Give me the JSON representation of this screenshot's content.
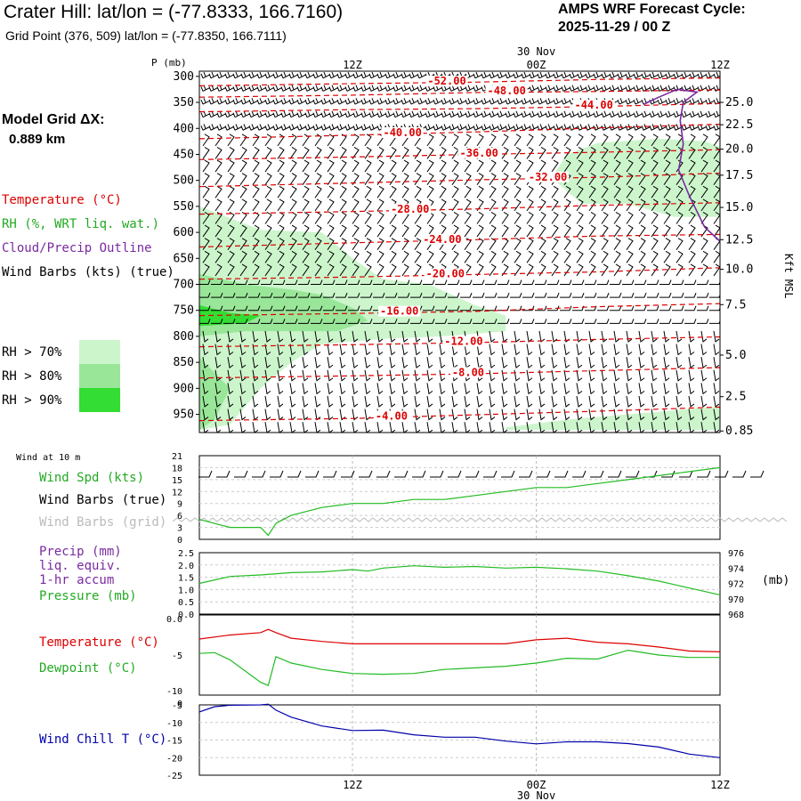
{
  "header": {
    "title": "Crater Hill:  lat/lon = (-77.8333, 166.7160)",
    "grid_point": "Grid Point (376, 509) lat/lon = (-77.8350, 166.7111)",
    "cycle_label": "AMPS WRF Forecast Cycle:",
    "cycle_value": "2025-11-29 / 00  Z"
  },
  "model": {
    "dx_label": "Model Grid ΔX:",
    "dx_value": "0.889 km"
  },
  "legend": {
    "temperature": "Temperature (°C)",
    "rh": "RH (%, WRT liq. wat.)",
    "cloud": "Cloud/Precip Outline",
    "wind": "Wind Barbs (kts) (true)",
    "rh_levels": [
      {
        "label": "RH > 70%",
        "color": "#ccf5cc"
      },
      {
        "label": "RH > 80%",
        "color": "#99e699"
      },
      {
        "label": "RH > 90%",
        "color": "#33dd33"
      }
    ]
  },
  "colors": {
    "temperature": "#dd0000",
    "rh": "#22bb22",
    "cloud": "#7a2aa0",
    "wind_chill": "#0000aa",
    "pressure": "#22bb22",
    "grid_barbs": "#bbbbbb"
  },
  "time_axis": {
    "date_label": "30 Nov",
    "ticks": [
      {
        "label": "12Z",
        "hour": 12
      },
      {
        "label": "00Z",
        "hour": 24
      },
      {
        "label": "12Z",
        "hour": 36
      }
    ],
    "range_hours": [
      2,
      36
    ]
  },
  "chart_data": [
    {
      "type": "heatmap",
      "panel": "time-height cross section",
      "ylabel": "P (mb)",
      "y2label": "Kft MSL",
      "pressure_ticks": [
        300,
        350,
        400,
        450,
        500,
        550,
        600,
        650,
        700,
        750,
        800,
        850,
        900,
        950
      ],
      "height_ticks": [
        {
          "label": "25.0",
          "p": 350
        },
        {
          "label": "22.5",
          "p": 393
        },
        {
          "label": "20.0",
          "p": 440
        },
        {
          "label": "17.5",
          "p": 490
        },
        {
          "label": "15.0",
          "p": 552
        },
        {
          "label": "12.5",
          "p": 614
        },
        {
          "label": "10.0",
          "p": 671
        },
        {
          "label": "7.5",
          "p": 739
        },
        {
          "label": "5.0",
          "p": 836
        },
        {
          "label": "2.5",
          "p": 916
        },
        {
          "label": "0.85",
          "p": 982
        }
      ],
      "ylim": [
        290,
        985
      ],
      "isotherms": [
        {
          "label": "-52.00",
          "value": -52,
          "label_hour": 16.9,
          "points": [
            [
              2,
              318
            ],
            [
              12,
              314
            ],
            [
              20,
              311
            ],
            [
              28,
              306
            ],
            [
              36,
              303
            ]
          ]
        },
        {
          "label": "-48.00",
          "value": -48,
          "label_hour": 20.8,
          "points": [
            [
              2,
              340
            ],
            [
              12,
              336
            ],
            [
              20,
              331
            ],
            [
              28,
              329
            ],
            [
              36,
              326
            ]
          ]
        },
        {
          "label": "-44.00",
          "value": -44,
          "label_hour": 26.5,
          "points": [
            [
              2,
              368
            ],
            [
              12,
              364
            ],
            [
              20,
              362
            ],
            [
              28,
              358
            ],
            [
              36,
              352
            ]
          ]
        },
        {
          "label": "-40.00",
          "value": -40,
          "label_hour": 14.0,
          "points": [
            [
              2,
              420
            ],
            [
              12,
              413
            ],
            [
              20,
              407
            ],
            [
              28,
              399
            ],
            [
              36,
              392
            ]
          ]
        },
        {
          "label": "-36.00",
          "value": -36,
          "label_hour": 19.0,
          "points": [
            [
              2,
              460
            ],
            [
              12,
              455
            ],
            [
              20,
              450
            ],
            [
              28,
              446
            ],
            [
              36,
              441
            ]
          ]
        },
        {
          "label": "-32.00",
          "value": -32,
          "label_hour": 23.5,
          "points": [
            [
              2,
              512
            ],
            [
              12,
              505
            ],
            [
              20,
              499
            ],
            [
              28,
              494
            ],
            [
              36,
              486
            ]
          ]
        },
        {
          "label": "-28.00",
          "value": -28,
          "label_hour": 14.5,
          "points": [
            [
              2,
              565
            ],
            [
              12,
              560
            ],
            [
              20,
              555
            ],
            [
              28,
              548
            ],
            [
              36,
              543
            ]
          ]
        },
        {
          "label": "-24.00",
          "value": -24,
          "label_hour": 16.6,
          "points": [
            [
              2,
              628
            ],
            [
              12,
              620
            ],
            [
              20,
              614
            ],
            [
              28,
              607
            ],
            [
              36,
              604
            ]
          ]
        },
        {
          "label": "-20.00",
          "value": -20,
          "label_hour": 16.8,
          "points": [
            [
              2,
              690
            ],
            [
              12,
              686
            ],
            [
              20,
              681
            ],
            [
              28,
              676
            ],
            [
              36,
              668
            ]
          ]
        },
        {
          "label": "-16.00",
          "value": -16,
          "label_hour": 13.8,
          "points": [
            [
              2,
              760
            ],
            [
              12,
              756
            ],
            [
              20,
              752
            ],
            [
              28,
              743
            ],
            [
              36,
              737
            ]
          ]
        },
        {
          "label": "-12.00",
          "value": -12,
          "label_hour": 18.0,
          "points": [
            [
              2,
              820
            ],
            [
              12,
              816
            ],
            [
              20,
              812
            ],
            [
              28,
              806
            ],
            [
              36,
              801
            ]
          ]
        },
        {
          "label": "-8.00",
          "value": -8,
          "label_hour": 18.5,
          "points": [
            [
              2,
              880
            ],
            [
              12,
              876
            ],
            [
              20,
              872
            ],
            [
              28,
              866
            ],
            [
              36,
              860
            ]
          ]
        },
        {
          "label": "-4.00",
          "value": -4,
          "label_hour": 13.5,
          "points": [
            [
              2,
              962
            ],
            [
              12,
              958
            ],
            [
              20,
              951
            ],
            [
              28,
              944
            ],
            [
              36,
              936
            ]
          ]
        }
      ],
      "rh_areas": [
        {
          "level": 70,
          "points": [
            [
              2,
              550
            ],
            [
              6,
              595
            ],
            [
              10,
              600
            ],
            [
              12,
              650
            ],
            [
              14,
              690
            ],
            [
              17,
              700
            ],
            [
              20,
              740
            ],
            [
              22,
              760
            ],
            [
              22,
              790
            ],
            [
              18,
              800
            ],
            [
              14,
              805
            ],
            [
              10,
              815
            ],
            [
              8,
              850
            ],
            [
              6,
              900
            ],
            [
              4,
              970
            ],
            [
              2,
              980
            ]
          ]
        },
        {
          "level": 70,
          "points": [
            [
              25,
              495
            ],
            [
              26,
              450
            ],
            [
              28,
              428
            ],
            [
              32,
              420
            ],
            [
              35,
              425
            ],
            [
              36,
              435
            ],
            [
              36,
              570
            ],
            [
              33,
              570
            ],
            [
              30,
              545
            ],
            [
              27,
              545
            ]
          ]
        },
        {
          "level": 70,
          "points": [
            [
              22,
              975
            ],
            [
              26,
              960
            ],
            [
              32,
              945
            ],
            [
              36,
              935
            ],
            [
              36,
              980
            ],
            [
              22,
              980
            ]
          ]
        },
        {
          "level": 80,
          "points": [
            [
              2,
              680
            ],
            [
              5,
              700
            ],
            [
              8,
              710
            ],
            [
              10,
              720
            ],
            [
              12,
              745
            ],
            [
              13,
              770
            ],
            [
              11,
              790
            ],
            [
              8,
              790
            ],
            [
              5,
              790
            ],
            [
              2,
              800
            ]
          ]
        },
        {
          "level": 80,
          "points": [
            [
              2,
              840
            ],
            [
              4,
              900
            ],
            [
              3,
              960
            ],
            [
              2,
              980
            ]
          ]
        },
        {
          "level": 90,
          "points": [
            [
              2,
              740
            ],
            [
              4,
              755
            ],
            [
              6,
              760
            ],
            [
              5,
              775
            ],
            [
              2,
              780
            ]
          ]
        }
      ],
      "cloud_outline": {
        "points": [
          [
            31,
            354
          ],
          [
            32,
            340
          ],
          [
            33.2,
            325
          ],
          [
            34.5,
            330
          ],
          [
            33.6,
            350
          ],
          [
            33.4,
            385
          ],
          [
            33.6,
            430
          ],
          [
            33.3,
            480
          ],
          [
            34,
            530
          ],
          [
            35,
            590
          ],
          [
            36,
            617
          ]
        ]
      },
      "wind_levels": [
        300,
        325,
        350,
        375,
        400,
        425,
        450,
        475,
        500,
        525,
        550,
        575,
        600,
        625,
        650,
        675,
        700,
        725,
        750,
        775,
        800,
        825,
        850,
        875,
        900,
        925,
        950,
        975
      ]
    },
    {
      "type": "line",
      "panel": "wind at 10 m",
      "title": "Wind at 10 m",
      "yticks": [
        0,
        3,
        6,
        9,
        12,
        15,
        18,
        21
      ],
      "ylim": [
        0,
        21
      ],
      "series": [
        {
          "name": "Wind Spd (kts)",
          "x": [
            2,
            4,
            6,
            6.5,
            7,
            8,
            10,
            12,
            14,
            16,
            18,
            20,
            22,
            24,
            26,
            28,
            30,
            32,
            34,
            36
          ],
          "values": [
            5,
            3,
            3,
            1,
            4,
            6,
            8,
            9,
            9,
            10,
            10,
            11,
            12,
            13,
            13,
            14,
            15,
            16,
            17,
            18
          ]
        }
      ],
      "labels": {
        "speed": "Wind Spd (kts)",
        "barbs_true": "Wind Barbs (true)",
        "barbs_grid": "Wind Barbs (grid)"
      }
    },
    {
      "type": "line",
      "panel": "precip and pressure",
      "yticks_left": [
        0.0,
        0.5,
        1.0,
        1.5,
        2.0,
        2.5
      ],
      "ylim_left": [
        0,
        2.5
      ],
      "yticks_right": [
        968,
        970,
        972,
        974,
        976
      ],
      "ylim_right": [
        968,
        976
      ],
      "y2label": "(mb)",
      "series": [
        {
          "name": "Pressure (mb)",
          "x": [
            2,
            4,
            6,
            8,
            10,
            12,
            13,
            14,
            16,
            18,
            20,
            22,
            24,
            26,
            28,
            30,
            32,
            34,
            36
          ],
          "values": [
            972.0,
            972.9,
            973.1,
            973.4,
            973.5,
            973.8,
            973.6,
            974.0,
            974.3,
            974.1,
            974.2,
            974.0,
            974.1,
            973.9,
            973.6,
            973.0,
            972.3,
            971.4,
            970.5
          ]
        },
        {
          "name": "Precip (mm)",
          "x": [
            2,
            36
          ],
          "values": [
            0,
            0
          ]
        }
      ],
      "labels": {
        "precip": "Precip (mm)",
        "liq": "liq. equiv.",
        "accum": "1-hr accum",
        "pressure": "Pressure (mb)"
      }
    },
    {
      "type": "line",
      "panel": "temperature and dewpoint",
      "yticks": [
        {
          "label": "0.0",
          "value": 0
        },
        {
          "label": "-5",
          "value": -5
        },
        {
          "label": "-10",
          "value": -10
        }
      ],
      "ylim": [
        -10,
        0
      ],
      "series": [
        {
          "name": "Temperature (°C)",
          "x": [
            2,
            4,
            6,
            6.5,
            7,
            8,
            10,
            12,
            14,
            16,
            18,
            20,
            22,
            24,
            26,
            28,
            30,
            32,
            34,
            36
          ],
          "values": [
            -3.0,
            -2.5,
            -2.2,
            -1.8,
            -2.2,
            -2.9,
            -3.3,
            -3.6,
            -3.6,
            -3.6,
            -3.6,
            -3.6,
            -3.6,
            -3.1,
            -2.9,
            -3.4,
            -3.6,
            -4.0,
            -4.5,
            -4.6
          ]
        },
        {
          "name": "Dewpoint (°C)",
          "x": [
            2,
            3,
            4,
            6,
            6.5,
            7,
            8,
            10,
            12,
            14,
            16,
            18,
            20,
            22,
            24,
            26,
            28,
            30,
            32,
            34,
            36
          ],
          "values": [
            -4.8,
            -4.7,
            -5.6,
            -8.4,
            -8.8,
            -5.2,
            -6.0,
            -6.8,
            -7.3,
            -7.4,
            -7.3,
            -6.8,
            -6.6,
            -6.4,
            -6.0,
            -5.4,
            -5.5,
            -4.4,
            -5.0,
            -5.3,
            -5.3
          ]
        }
      ]
    },
    {
      "type": "line",
      "panel": "wind chill",
      "yticks": [
        -5,
        -10,
        -15,
        -20,
        -25
      ],
      "ylim": [
        -25,
        -5
      ],
      "series": [
        {
          "name": "Wind Chill T (°C)",
          "x": [
            2,
            3,
            4,
            6,
            6.5,
            7,
            8,
            10,
            12,
            14,
            16,
            18,
            20,
            22,
            24,
            26,
            28,
            30,
            32,
            34,
            36
          ],
          "values": [
            -7.0,
            -5.5,
            -5.1,
            -5.0,
            -4.8,
            -6.5,
            -8.5,
            -11.0,
            -12.3,
            -12.2,
            -13.5,
            -14.2,
            -14.2,
            -15.3,
            -16.1,
            -15.5,
            -15.5,
            -16.0,
            -17.0,
            -19.0,
            -20.0
          ]
        }
      ]
    }
  ]
}
